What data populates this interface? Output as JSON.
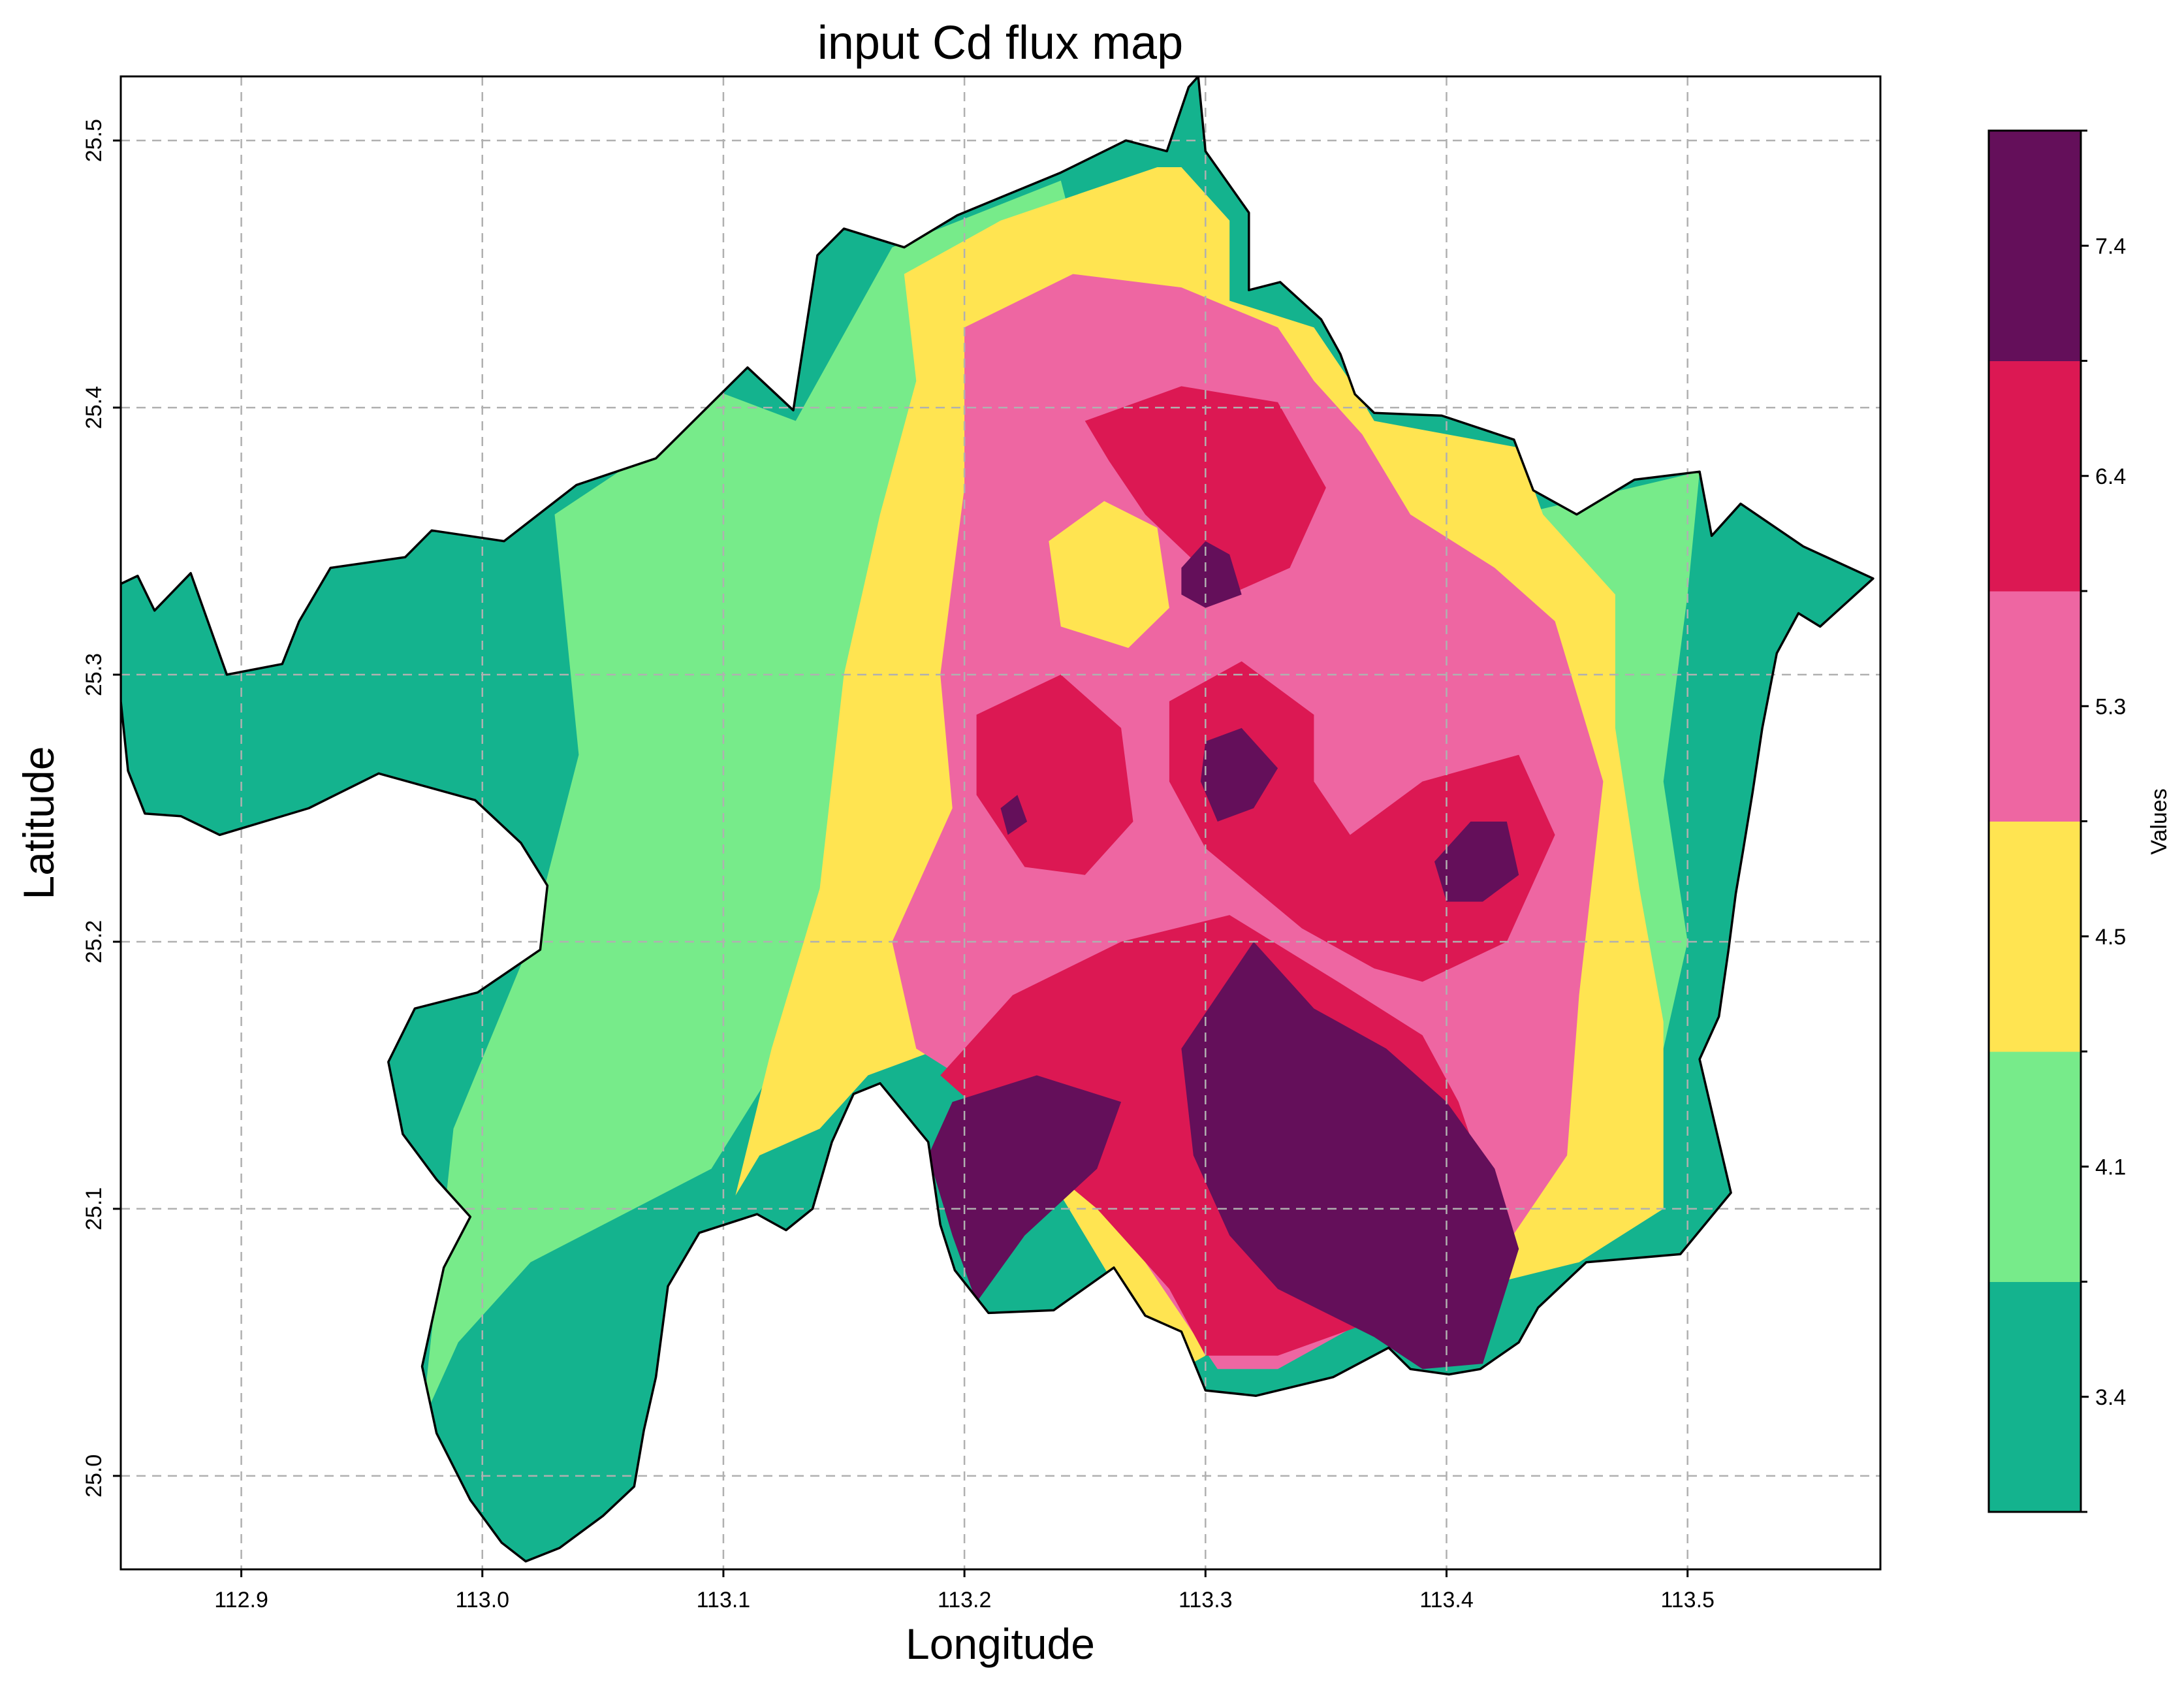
{
  "title": "input Cd flux map",
  "xlabel": "Longitude",
  "ylabel": "Latitude",
  "colorbar": {
    "label": "Values",
    "tick_labels": [
      "3.4",
      "4.1",
      "4.5",
      "5.3",
      "6.4",
      "7.4"
    ],
    "classes": [
      {
        "color": "#14b38e"
      },
      {
        "color": "#77eb8a"
      },
      {
        "color": "#ffe451"
      },
      {
        "color": "#ee66a2"
      },
      {
        "color": "#dc1853"
      },
      {
        "color": "#640f5a"
      }
    ]
  },
  "axes": {
    "x_ticks": [
      "112.9",
      "113.0",
      "113.1",
      "113.2",
      "113.3",
      "113.4",
      "113.5"
    ],
    "y_ticks": [
      "25.0",
      "25.1",
      "25.2",
      "25.3",
      "25.4",
      "25.5"
    ],
    "grid": true
  },
  "chart_data": {
    "type": "heatmap",
    "title": "input Cd flux map",
    "xlabel": "Longitude",
    "ylabel": "Latitude",
    "xlim": [
      112.85,
      113.58
    ],
    "ylim": [
      24.965,
      25.524
    ],
    "x_ticks": [
      112.9,
      113.0,
      113.1,
      113.2,
      113.3,
      113.4,
      113.5
    ],
    "y_ticks": [
      25.0,
      25.1,
      25.2,
      25.3,
      25.4,
      25.5
    ],
    "colorbar_ticks": [
      3.4,
      4.1,
      4.5,
      5.3,
      6.4,
      7.4
    ],
    "classes": [
      {
        "class": 1,
        "color": "#14b38e"
      },
      {
        "class": 2,
        "color": "#77eb8a"
      },
      {
        "class": 3,
        "color": "#ffe451"
      },
      {
        "class": 4,
        "color": "#ee66a2"
      },
      {
        "class": 5,
        "color": "#dc1853"
      },
      {
        "class": 6,
        "color": "#640f5a"
      }
    ],
    "boundary_lonlat": [
      [
        112.85,
        25.334
      ],
      [
        112.857,
        25.337
      ],
      [
        112.864,
        25.324
      ],
      [
        112.879,
        25.338
      ],
      [
        112.894,
        25.3
      ],
      [
        112.917,
        25.304
      ],
      [
        112.924,
        25.32
      ],
      [
        112.937,
        25.34
      ],
      [
        112.968,
        25.344
      ],
      [
        112.979,
        25.354
      ],
      [
        113.009,
        25.35
      ],
      [
        113.039,
        25.371
      ],
      [
        113.072,
        25.381
      ],
      [
        113.11,
        25.415
      ],
      [
        113.129,
        25.399
      ],
      [
        113.139,
        25.457
      ],
      [
        113.15,
        25.467
      ],
      [
        113.175,
        25.46
      ],
      [
        113.197,
        25.472
      ],
      [
        113.24,
        25.488
      ],
      [
        113.267,
        25.5
      ],
      [
        113.284,
        25.496
      ],
      [
        113.293,
        25.52
      ],
      [
        113.297,
        25.524
      ],
      [
        113.3,
        25.496
      ],
      [
        113.318,
        25.473
      ],
      [
        113.318,
        25.444
      ],
      [
        113.331,
        25.447
      ],
      [
        113.348,
        25.433
      ],
      [
        113.356,
        25.42
      ],
      [
        113.362,
        25.405
      ],
      [
        113.37,
        25.398
      ],
      [
        113.398,
        25.397
      ],
      [
        113.428,
        25.388
      ],
      [
        113.436,
        25.369
      ],
      [
        113.454,
        25.36
      ],
      [
        113.478,
        25.373
      ],
      [
        113.505,
        25.376
      ],
      [
        113.51,
        25.352
      ],
      [
        113.522,
        25.364
      ],
      [
        113.548,
        25.348
      ],
      [
        113.577,
        25.336
      ],
      [
        113.555,
        25.318
      ],
      [
        113.546,
        25.323
      ],
      [
        113.537,
        25.308
      ],
      [
        113.531,
        25.28
      ],
      [
        113.527,
        25.256
      ],
      [
        113.523,
        25.234
      ],
      [
        113.52,
        25.218
      ],
      [
        113.517,
        25.197
      ],
      [
        113.513,
        25.172
      ],
      [
        113.505,
        25.156
      ],
      [
        113.518,
        25.106
      ],
      [
        113.497,
        25.083
      ],
      [
        113.458,
        25.08
      ],
      [
        113.438,
        25.063
      ],
      [
        113.43,
        25.05
      ],
      [
        113.414,
        25.04
      ],
      [
        113.401,
        25.038
      ],
      [
        113.385,
        25.04
      ],
      [
        113.376,
        25.048
      ],
      [
        113.353,
        25.037
      ],
      [
        113.321,
        25.03
      ],
      [
        113.3,
        25.032
      ],
      [
        113.29,
        25.054
      ],
      [
        113.275,
        25.06
      ],
      [
        113.262,
        25.078
      ],
      [
        113.237,
        25.062
      ],
      [
        113.21,
        25.061
      ],
      [
        113.196,
        25.077
      ],
      [
        113.19,
        25.094
      ],
      [
        113.185,
        25.125
      ],
      [
        113.165,
        25.147
      ],
      [
        113.154,
        25.143
      ],
      [
        113.145,
        25.125
      ],
      [
        113.137,
        25.1
      ],
      [
        113.126,
        25.092
      ],
      [
        113.114,
        25.098
      ],
      [
        113.09,
        25.091
      ],
      [
        113.077,
        25.071
      ],
      [
        113.072,
        25.037
      ],
      [
        113.067,
        25.017
      ],
      [
        113.063,
        24.996
      ],
      [
        113.05,
        24.985
      ],
      [
        113.032,
        24.973
      ],
      [
        113.018,
        24.968
      ],
      [
        113.008,
        24.975
      ],
      [
        112.995,
        24.991
      ],
      [
        112.981,
        25.016
      ],
      [
        112.975,
        25.041
      ],
      [
        112.984,
        25.078
      ],
      [
        112.995,
        25.097
      ],
      [
        112.981,
        25.111
      ],
      [
        112.967,
        25.128
      ],
      [
        112.961,
        25.155
      ],
      [
        112.972,
        25.175
      ],
      [
        112.998,
        25.181
      ],
      [
        113.024,
        25.197
      ],
      [
        113.027,
        25.221
      ],
      [
        113.016,
        25.237
      ],
      [
        112.997,
        25.253
      ],
      [
        112.957,
        25.263
      ],
      [
        112.928,
        25.25
      ],
      [
        112.891,
        25.24
      ],
      [
        112.875,
        25.247
      ],
      [
        112.86,
        25.248
      ],
      [
        112.853,
        25.264
      ],
      [
        112.85,
        25.29
      ]
    ],
    "zones": [
      {
        "class": 2,
        "points": [
          [
            113.086,
            25.41
          ],
          [
            113.13,
            25.395
          ],
          [
            113.17,
            25.46
          ],
          [
            113.24,
            25.485
          ],
          [
            113.25,
            25.45
          ],
          [
            113.22,
            25.4
          ],
          [
            113.2,
            25.33
          ],
          [
            113.165,
            25.26
          ],
          [
            113.14,
            25.18
          ],
          [
            113.095,
            25.115
          ],
          [
            113.02,
            25.08
          ],
          [
            112.99,
            25.05
          ],
          [
            112.975,
            25.02
          ],
          [
            112.988,
            25.13
          ],
          [
            113.02,
            25.2
          ],
          [
            113.04,
            25.27
          ],
          [
            113.03,
            25.36
          ],
          [
            113.06,
            25.378
          ]
        ]
      },
      {
        "class": 2,
        "points": [
          [
            113.43,
            25.36
          ],
          [
            113.505,
            25.376
          ],
          [
            113.5,
            25.33
          ],
          [
            113.49,
            25.26
          ],
          [
            113.5,
            25.2
          ],
          [
            113.49,
            25.16
          ],
          [
            113.47,
            25.25
          ],
          [
            113.44,
            25.3
          ]
        ]
      },
      {
        "class": 3,
        "points": [
          [
            113.175,
            25.45
          ],
          [
            113.215,
            25.47
          ],
          [
            113.28,
            25.49
          ],
          [
            113.29,
            25.49
          ],
          [
            113.31,
            25.47
          ],
          [
            113.31,
            25.44
          ],
          [
            113.345,
            25.43
          ],
          [
            113.36,
            25.41
          ],
          [
            113.37,
            25.395
          ],
          [
            113.43,
            25.385
          ],
          [
            113.44,
            25.36
          ],
          [
            113.47,
            25.33
          ],
          [
            113.47,
            25.28
          ],
          [
            113.48,
            25.22
          ],
          [
            113.49,
            25.17
          ],
          [
            113.49,
            25.1
          ],
          [
            113.455,
            25.08
          ],
          [
            113.41,
            25.07
          ],
          [
            113.33,
            25.06
          ],
          [
            113.29,
            25.04
          ],
          [
            113.27,
            25.06
          ],
          [
            113.23,
            25.12
          ],
          [
            113.19,
            25.16
          ],
          [
            113.16,
            25.15
          ],
          [
            113.14,
            25.13
          ],
          [
            113.115,
            25.12
          ],
          [
            113.105,
            25.105
          ],
          [
            113.12,
            25.16
          ],
          [
            113.14,
            25.22
          ],
          [
            113.15,
            25.3
          ],
          [
            113.165,
            25.36
          ],
          [
            113.18,
            25.41
          ]
        ]
      },
      {
        "class": 4,
        "points": [
          [
            113.2,
            25.43
          ],
          [
            113.245,
            25.45
          ],
          [
            113.29,
            25.445
          ],
          [
            113.33,
            25.43
          ],
          [
            113.345,
            25.41
          ],
          [
            113.365,
            25.39
          ],
          [
            113.385,
            25.36
          ],
          [
            113.42,
            25.34
          ],
          [
            113.445,
            25.32
          ],
          [
            113.455,
            25.29
          ],
          [
            113.465,
            25.26
          ],
          [
            113.46,
            25.22
          ],
          [
            113.455,
            25.18
          ],
          [
            113.45,
            25.12
          ],
          [
            113.42,
            25.08
          ],
          [
            113.37,
            25.06
          ],
          [
            113.33,
            25.04
          ],
          [
            113.305,
            25.04
          ],
          [
            113.29,
            25.06
          ],
          [
            113.26,
            25.1
          ],
          [
            113.215,
            25.14
          ],
          [
            113.18,
            25.16
          ],
          [
            113.17,
            25.2
          ],
          [
            113.195,
            25.25
          ],
          [
            113.19,
            25.3
          ],
          [
            113.2,
            25.37
          ]
        ]
      },
      {
        "class": 3,
        "points": [
          [
            113.235,
            25.35
          ],
          [
            113.258,
            25.365
          ],
          [
            113.28,
            25.355
          ],
          [
            113.285,
            25.325
          ],
          [
            113.268,
            25.31
          ],
          [
            113.24,
            25.318
          ]
        ]
      },
      {
        "class": 5,
        "points": [
          [
            113.25,
            25.395
          ],
          [
            113.29,
            25.408
          ],
          [
            113.33,
            25.402
          ],
          [
            113.35,
            25.37
          ],
          [
            113.335,
            25.34
          ],
          [
            113.31,
            25.33
          ],
          [
            113.275,
            25.36
          ],
          [
            113.26,
            25.38
          ]
        ]
      },
      {
        "class": 5,
        "points": [
          [
            113.205,
            25.285
          ],
          [
            113.24,
            25.3
          ],
          [
            113.265,
            25.28
          ],
          [
            113.27,
            25.245
          ],
          [
            113.25,
            25.225
          ],
          [
            113.225,
            25.228
          ],
          [
            113.205,
            25.255
          ]
        ]
      },
      {
        "class": 5,
        "points": [
          [
            113.285,
            25.29
          ],
          [
            113.315,
            25.305
          ],
          [
            113.345,
            25.285
          ],
          [
            113.345,
            25.26
          ],
          [
            113.36,
            25.24
          ],
          [
            113.39,
            25.26
          ],
          [
            113.43,
            25.27
          ],
          [
            113.445,
            25.24
          ],
          [
            113.425,
            25.2
          ],
          [
            113.39,
            25.185
          ],
          [
            113.37,
            25.19
          ],
          [
            113.34,
            25.205
          ],
          [
            113.3,
            25.235
          ],
          [
            113.285,
            25.26
          ]
        ]
      },
      {
        "class": 5,
        "points": [
          [
            113.22,
            25.18
          ],
          [
            113.265,
            25.2
          ],
          [
            113.31,
            25.21
          ],
          [
            113.355,
            25.185
          ],
          [
            113.39,
            25.165
          ],
          [
            113.405,
            25.14
          ],
          [
            113.42,
            25.1
          ],
          [
            113.41,
            25.07
          ],
          [
            113.37,
            25.058
          ],
          [
            113.33,
            25.045
          ],
          [
            113.3,
            25.045
          ],
          [
            113.285,
            25.07
          ],
          [
            113.255,
            25.1
          ],
          [
            113.215,
            25.13
          ],
          [
            113.19,
            25.15
          ]
        ]
      },
      {
        "class": 6,
        "points": [
          [
            113.195,
            25.14
          ],
          [
            113.23,
            25.15
          ],
          [
            113.265,
            25.14
          ],
          [
            113.255,
            25.115
          ],
          [
            113.225,
            25.09
          ],
          [
            113.205,
            25.065
          ],
          [
            113.195,
            25.09
          ],
          [
            113.185,
            25.12
          ]
        ]
      },
      {
        "class": 6,
        "points": [
          [
            113.29,
            25.16
          ],
          [
            113.32,
            25.2
          ],
          [
            113.345,
            25.175
          ],
          [
            113.375,
            25.16
          ],
          [
            113.4,
            25.14
          ],
          [
            113.42,
            25.115
          ],
          [
            113.43,
            25.085
          ],
          [
            113.415,
            25.042
          ],
          [
            113.39,
            25.04
          ],
          [
            113.37,
            25.052
          ],
          [
            113.33,
            25.07
          ],
          [
            113.31,
            25.09
          ],
          [
            113.295,
            25.12
          ]
        ]
      },
      {
        "class": 6,
        "points": [
          [
            113.29,
            25.34
          ],
          [
            113.3,
            25.35
          ],
          [
            113.31,
            25.345
          ],
          [
            113.315,
            25.33
          ],
          [
            113.3,
            25.325
          ],
          [
            113.29,
            25.33
          ]
        ]
      },
      {
        "class": 6,
        "points": [
          [
            113.3,
            25.275
          ],
          [
            113.315,
            25.28
          ],
          [
            113.33,
            25.265
          ],
          [
            113.32,
            25.25
          ],
          [
            113.305,
            25.245
          ],
          [
            113.298,
            25.26
          ]
        ]
      },
      {
        "class": 6,
        "points": [
          [
            113.395,
            25.23
          ],
          [
            113.41,
            25.245
          ],
          [
            113.425,
            25.245
          ],
          [
            113.43,
            25.225
          ],
          [
            113.415,
            25.215
          ],
          [
            113.4,
            25.215
          ]
        ]
      },
      {
        "class": 6,
        "points": [
          [
            113.215,
            25.25
          ],
          [
            113.222,
            25.255
          ],
          [
            113.226,
            25.245
          ],
          [
            113.218,
            25.24
          ]
        ]
      }
    ]
  }
}
